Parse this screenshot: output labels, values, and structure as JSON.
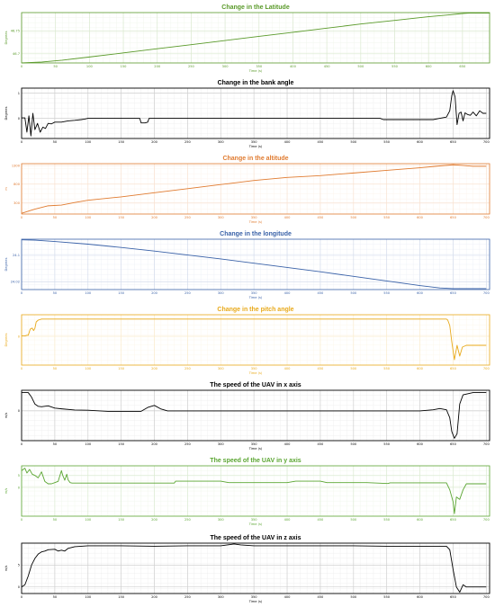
{
  "chart_data": [
    {
      "type": "line",
      "title": "Change in the Latitude",
      "xlabel": "Time (s)",
      "ylabel": "Degrees",
      "color": "#5a9a2a",
      "xlim": [
        0,
        690
      ],
      "ylim": [
        46.68,
        46.79
      ],
      "xticks": [
        0,
        50,
        100,
        150,
        200,
        250,
        300,
        350,
        400,
        450,
        500,
        550,
        600,
        650
      ],
      "yticks": [
        46.7,
        46.75
      ],
      "ytick_labels": [
        "46.7",
        "46.75"
      ],
      "x": [
        0,
        30,
        60,
        100,
        150,
        200,
        250,
        300,
        350,
        400,
        450,
        500,
        550,
        600,
        630,
        650,
        660,
        690
      ],
      "y": [
        46.68,
        46.682,
        46.686,
        46.693,
        46.702,
        46.711,
        46.72,
        46.729,
        46.738,
        46.747,
        46.756,
        46.765,
        46.773,
        46.781,
        46.785,
        46.788,
        46.789,
        46.789
      ]
    },
    {
      "type": "line",
      "title": "Change in the bank angle",
      "xlabel": "Time (s)",
      "ylabel": "Degrees",
      "color": "#000000",
      "xlim": [
        0,
        705
      ],
      "ylim": [
        -0.8,
        1.2
      ],
      "xticks": [
        0,
        50,
        100,
        150,
        200,
        250,
        300,
        350,
        400,
        450,
        500,
        550,
        600,
        650,
        700
      ],
      "yticks": [
        0,
        1
      ],
      "ytick_labels": [
        "0",
        "1"
      ],
      "x": [
        0,
        5,
        8,
        11,
        14,
        17,
        20,
        24,
        28,
        32,
        36,
        40,
        45,
        50,
        60,
        70,
        80,
        90,
        95,
        100,
        140,
        178,
        180,
        182,
        186,
        190,
        192,
        195,
        250,
        300,
        350,
        400,
        450,
        500,
        540,
        545,
        560,
        600,
        620,
        630,
        640,
        645,
        648,
        650,
        653,
        656,
        659,
        662,
        665,
        668,
        672,
        676,
        680,
        685,
        690,
        695,
        700
      ],
      "y": [
        0.02,
        0.02,
        -0.55,
        0.1,
        -0.7,
        0.2,
        -0.45,
        -0.2,
        -0.55,
        -0.35,
        -0.4,
        -0.2,
        -0.22,
        -0.15,
        -0.15,
        -0.1,
        -0.08,
        -0.05,
        -0.03,
        0.0,
        0.0,
        0.0,
        -0.18,
        -0.18,
        -0.18,
        -0.15,
        0.0,
        0.0,
        0.0,
        0.0,
        0.0,
        0.0,
        0.0,
        0.0,
        0.0,
        -0.05,
        -0.05,
        -0.05,
        -0.05,
        0.0,
        0.05,
        0.3,
        0.9,
        1.1,
        0.85,
        -0.25,
        0.2,
        0.25,
        -0.1,
        0.22,
        0.15,
        0.12,
        0.25,
        0.1,
        0.3,
        0.2,
        0.2
      ]
    },
    {
      "type": "line",
      "title": "Change in the altitude",
      "xlabel": "Time (s)",
      "ylabel": "m",
      "color": "#e07b30",
      "xlim": [
        0,
        705
      ],
      "ylim": [
        0,
        1350
      ],
      "xticks": [
        0,
        50,
        100,
        150,
        200,
        250,
        300,
        350,
        400,
        450,
        500,
        550,
        600,
        650,
        700
      ],
      "yticks": [
        300,
        800,
        1300
      ],
      "ytick_labels": [
        "300",
        "800",
        "1300"
      ],
      "x": [
        0,
        20,
        40,
        60,
        80,
        100,
        150,
        200,
        250,
        300,
        350,
        400,
        450,
        500,
        550,
        600,
        630,
        650,
        660,
        680,
        700
      ],
      "y": [
        20,
        130,
        220,
        240,
        310,
        370,
        460,
        570,
        680,
        790,
        900,
        980,
        1030,
        1100,
        1170,
        1240,
        1290,
        1320,
        1310,
        1280,
        1280
      ]
    },
    {
      "type": "line",
      "title": "Change in the longitude",
      "xlabel": "Time (s)",
      "ylabel": "Degrees",
      "color": "#3a62a8",
      "xlim": [
        0,
        705
      ],
      "ylim": [
        23.996,
        24.149
      ],
      "xticks": [
        0,
        50,
        100,
        150,
        200,
        250,
        300,
        350,
        400,
        450,
        500,
        550,
        600,
        650,
        700
      ],
      "yticks": [
        24.02,
        24.1
      ],
      "ytick_labels": [
        "24.02",
        "24.1"
      ],
      "x": [
        0,
        20,
        50,
        100,
        150,
        200,
        250,
        300,
        350,
        400,
        450,
        500,
        550,
        600,
        630,
        650,
        700
      ],
      "y": [
        24.147,
        24.146,
        24.142,
        24.134,
        24.124,
        24.113,
        24.101,
        24.089,
        24.076,
        24.063,
        24.05,
        24.036,
        24.022,
        24.008,
        24.001,
        23.999,
        23.999
      ]
    },
    {
      "type": "line",
      "title": "Change in the pitch angle",
      "xlabel": "Time (s)",
      "ylabel": "Degrees",
      "color": "#e8a91a",
      "xlim": [
        0,
        705
      ],
      "ylim": [
        -8,
        6
      ],
      "xticks": [
        0,
        50,
        100,
        150,
        200,
        250,
        300,
        350,
        400,
        450,
        500,
        550,
        600,
        650,
        700
      ],
      "yticks": [
        0
      ],
      "ytick_labels": [
        "0"
      ],
      "x": [
        0,
        5,
        8,
        10,
        13,
        16,
        18,
        20,
        22,
        25,
        30,
        50,
        100,
        200,
        300,
        400,
        500,
        600,
        640,
        642,
        645,
        648,
        652,
        656,
        660,
        664,
        670,
        680,
        700
      ],
      "y": [
        0.1,
        0.1,
        0.3,
        0.3,
        2.0,
        2.3,
        1.6,
        2.2,
        4.0,
        4.5,
        4.8,
        4.8,
        4.8,
        4.8,
        4.8,
        4.8,
        4.8,
        4.8,
        4.8,
        4.5,
        3.0,
        -1.5,
        -6.5,
        -2.5,
        -5.5,
        -3.0,
        -2.5,
        -2.5,
        -2.5
      ]
    },
    {
      "type": "line",
      "title": "The speed of the UAV in x axis",
      "xlabel": "Time (s)",
      "ylabel": "m/s",
      "color": "#000000",
      "xlim": [
        0,
        705
      ],
      "ylim": [
        -13,
        9
      ],
      "xticks": [
        0,
        50,
        100,
        150,
        200,
        250,
        300,
        350,
        400,
        450,
        500,
        550,
        600,
        650,
        700
      ],
      "yticks": [
        0
      ],
      "ytick_labels": [
        "0"
      ],
      "x": [
        0,
        5,
        10,
        15,
        20,
        25,
        30,
        40,
        50,
        60,
        80,
        100,
        130,
        180,
        190,
        200,
        210,
        220,
        250,
        300,
        350,
        400,
        450,
        500,
        550,
        600,
        620,
        630,
        640,
        645,
        648,
        652,
        656,
        660,
        665,
        680,
        700
      ],
      "y": [
        8,
        8,
        8,
        6,
        3,
        2,
        1.8,
        2.2,
        1.2,
        0.9,
        0.4,
        0.3,
        -0.2,
        -0.2,
        1.5,
        2.4,
        0.8,
        0.0,
        0.0,
        0.0,
        0.0,
        0.0,
        0.0,
        0.0,
        0.0,
        0.0,
        0.5,
        1.0,
        0.5,
        -3,
        -9,
        -12,
        -10,
        3,
        7,
        8,
        8
      ]
    },
    {
      "type": "line",
      "title": "The speed of the UAV in y axis",
      "xlabel": "Time (s)",
      "ylabel": "m/s",
      "color": "#5aa531",
      "xlim": [
        0,
        705
      ],
      "ylim": [
        -12,
        9
      ],
      "xticks": [
        0,
        50,
        100,
        150,
        200,
        250,
        300,
        350,
        400,
        450,
        500,
        550,
        600,
        650,
        700
      ],
      "yticks": [
        0,
        5
      ],
      "ytick_labels": [
        "0",
        "5"
      ],
      "x": [
        0,
        5,
        8,
        12,
        16,
        20,
        25,
        30,
        35,
        40,
        45,
        50,
        55,
        60,
        62,
        65,
        68,
        70,
        73,
        76,
        80,
        85,
        90,
        100,
        150,
        200,
        230,
        232,
        300,
        312,
        400,
        413,
        450,
        460,
        520,
        552,
        555,
        600,
        640,
        645,
        650,
        652,
        655,
        660,
        665,
        670,
        680,
        700
      ],
      "y": [
        7,
        8,
        6,
        7.5,
        5.5,
        5.0,
        4.0,
        6.5,
        2.5,
        1.5,
        1.5,
        2.0,
        2.5,
        7.0,
        5.0,
        3.0,
        5.5,
        3.2,
        2.0,
        1.8,
        1.8,
        1.8,
        1.8,
        1.8,
        1.8,
        1.8,
        1.8,
        2.6,
        2.6,
        2.0,
        2.0,
        2.6,
        2.6,
        2.0,
        2.0,
        1.6,
        1.9,
        1.9,
        1.9,
        -1,
        -6,
        -11,
        -4,
        -5,
        -1,
        1.5,
        1.5,
        1.5
      ]
    },
    {
      "type": "line",
      "title": "The speed of the UAV in z axis",
      "xlabel": "Time (s)",
      "ylabel": "m/s",
      "color": "#000000",
      "xlim": [
        0,
        705
      ],
      "ylim": [
        -1.5,
        10
      ],
      "xticks": [
        0,
        50,
        100,
        150,
        200,
        250,
        300,
        350,
        400,
        450,
        500,
        550,
        600,
        650,
        700
      ],
      "yticks": [
        0,
        5
      ],
      "ytick_labels": [
        "0",
        "5"
      ],
      "x": [
        0,
        5,
        10,
        15,
        20,
        25,
        30,
        35,
        40,
        50,
        55,
        60,
        65,
        70,
        80,
        100,
        150,
        200,
        250,
        300,
        310,
        320,
        330,
        350,
        400,
        450,
        500,
        550,
        600,
        630,
        640,
        645,
        650,
        655,
        660,
        665,
        670,
        700
      ],
      "y": [
        0,
        0.5,
        2.5,
        5.0,
        6.5,
        7.5,
        8.0,
        8.2,
        8.5,
        8.6,
        8.2,
        8.4,
        8.2,
        8.8,
        9.2,
        9.4,
        9.4,
        9.3,
        9.4,
        9.4,
        9.6,
        9.8,
        9.6,
        9.4,
        9.4,
        9.4,
        9.4,
        9.3,
        9.3,
        9.3,
        9.3,
        8.5,
        4.0,
        0.0,
        -1.2,
        0.5,
        0,
        0
      ]
    }
  ]
}
